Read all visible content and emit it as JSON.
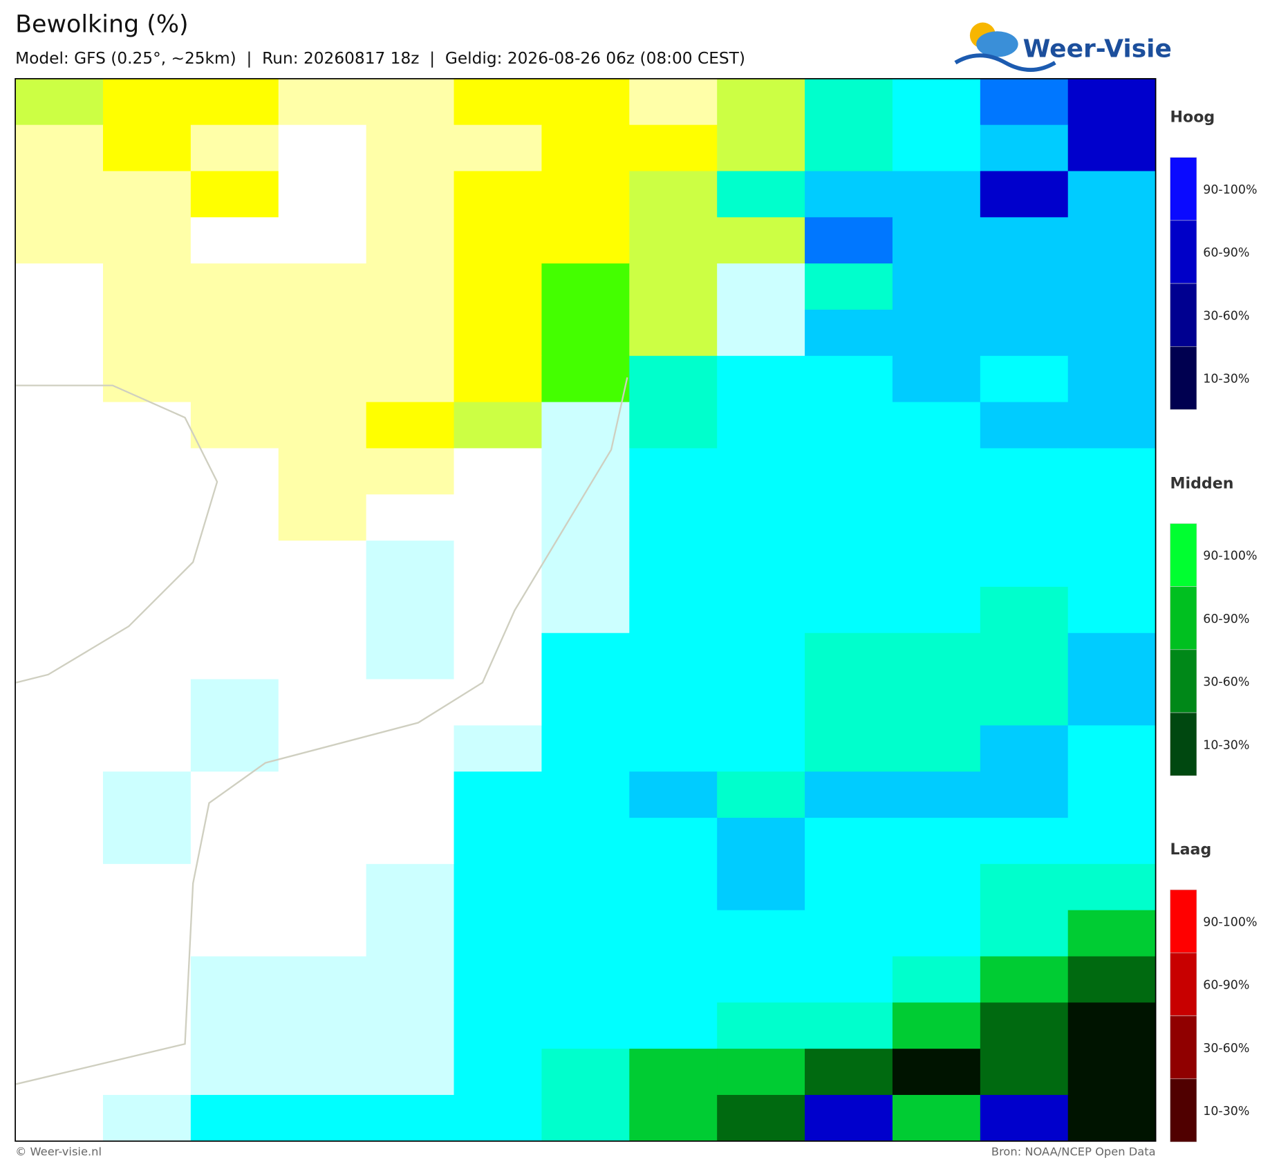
{
  "header": {
    "title": "Bewolking (%)",
    "subtitle": "Model: GFS (0.25°, ~25km)  |  Run: 20260817 18z  |  Geldig: 2026-08-26 06z (08:00 CEST)"
  },
  "logo": {
    "text": "Weer-Visie"
  },
  "legend": [
    {
      "title": "Hoog",
      "items": [
        {
          "label": "90-100%",
          "color": "#0a0aff"
        },
        {
          "label": "60-90%",
          "color": "#0000c8"
        },
        {
          "label": "30-60%",
          "color": "#000090"
        },
        {
          "label": "10-30%",
          "color": "#000050"
        }
      ]
    },
    {
      "title": "Midden",
      "items": [
        {
          "label": "90-100%",
          "color": "#00ff30"
        },
        {
          "label": "60-90%",
          "color": "#00c020"
        },
        {
          "label": "30-60%",
          "color": "#008818"
        },
        {
          "label": "10-30%",
          "color": "#004810"
        }
      ]
    },
    {
      "title": "Laag",
      "items": [
        {
          "label": "90-100%",
          "color": "#ff0000"
        },
        {
          "label": "60-90%",
          "color": "#c80000"
        },
        {
          "label": "30-60%",
          "color": "#900000"
        },
        {
          "label": "10-30%",
          "color": "#500000"
        }
      ]
    }
  ],
  "footer": {
    "left": "© Weer-visie.nl",
    "right": "Bron: NOAA/NCEP Open Data"
  }
}
